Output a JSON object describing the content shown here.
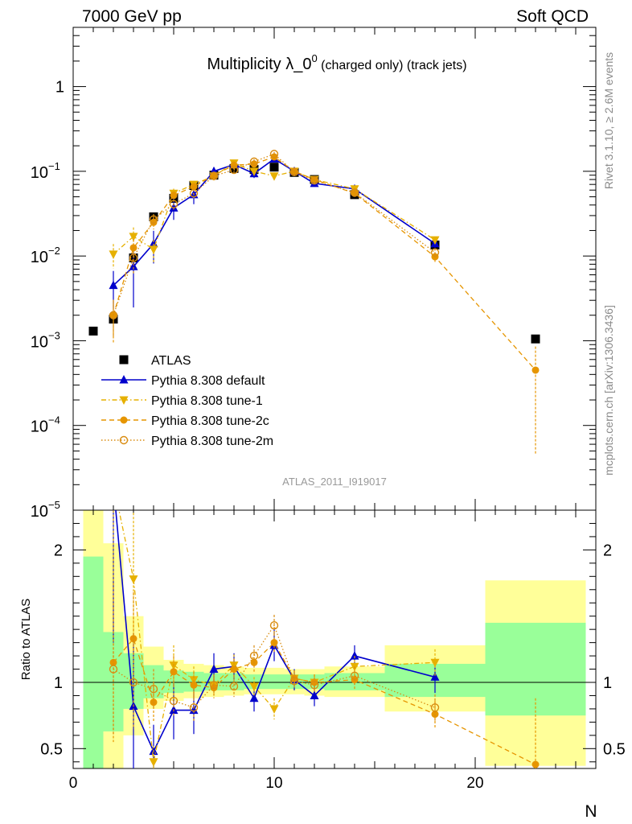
{
  "header": {
    "left": "7000 GeV pp",
    "right": "Soft QCD"
  },
  "side_labels": {
    "rivet": "Rivet 3.1.10, ≥ 2.6M events",
    "mcplots": "mcplots.cern.ch [arXiv:1306.3436]"
  },
  "chart_data": {
    "type": "scatter",
    "title_main": "Multiplicity λ_0",
    "title_sup": "0",
    "title_suffix": " (charged only) (track jets)",
    "watermark": "ATLAS_2011_I919017",
    "xlabel": "N",
    "ylabel_ratio": "Ratio to ATLAS",
    "xlim": [
      0,
      26
    ],
    "ylim_main": [
      1e-05,
      5
    ],
    "ylim_ratio": [
      0.35,
      2.3
    ],
    "y_scale_main": "log",
    "legend_position": "bottom-left",
    "x_ticks": [
      "0",
      "10",
      "20"
    ],
    "main_y_ticks": [
      {
        "v": 1,
        "label": "1",
        "sup": ""
      },
      {
        "v": 0.1,
        "label": "10",
        "sup": "−1"
      },
      {
        "v": 0.01,
        "label": "10",
        "sup": "−2"
      },
      {
        "v": 0.001,
        "label": "10",
        "sup": "−3"
      },
      {
        "v": 0.0001,
        "label": "10",
        "sup": "−4"
      },
      {
        "v": 1e-05,
        "label": "10",
        "sup": "−5"
      }
    ],
    "ratio_y_ticks": [
      "0.5",
      "1",
      "2"
    ],
    "ratio_bands": [
      {
        "x0": 0.5,
        "x1": 1.5,
        "g": [
          0.35,
          1.95
        ],
        "y": [
          0.35,
          2.3
        ]
      },
      {
        "x0": 1.5,
        "x1": 2.5,
        "g": [
          0.63,
          1.38
        ],
        "y": [
          0.35,
          2.05
        ]
      },
      {
        "x0": 2.5,
        "x1": 3.5,
        "g": [
          0.8,
          1.22
        ],
        "y": [
          0.6,
          1.5
        ]
      },
      {
        "x0": 3.5,
        "x1": 4.5,
        "g": [
          0.88,
          1.13
        ],
        "y": [
          0.8,
          1.27
        ]
      },
      {
        "x0": 4.5,
        "x1": 5.5,
        "g": [
          0.92,
          1.09
        ],
        "y": [
          0.86,
          1.17
        ]
      },
      {
        "x0": 5.5,
        "x1": 6.5,
        "g": [
          0.93,
          1.08
        ],
        "y": [
          0.88,
          1.14
        ]
      },
      {
        "x0": 6.5,
        "x1": 7.5,
        "g": [
          0.94,
          1.07
        ],
        "y": [
          0.89,
          1.13
        ]
      },
      {
        "x0": 7.5,
        "x1": 8.5,
        "g": [
          0.94,
          1.07
        ],
        "y": [
          0.9,
          1.12
        ]
      },
      {
        "x0": 8.5,
        "x1": 9.5,
        "g": [
          0.95,
          1.06
        ],
        "y": [
          0.91,
          1.11
        ]
      },
      {
        "x0": 9.5,
        "x1": 10.5,
        "g": [
          0.95,
          1.06
        ],
        "y": [
          0.91,
          1.11
        ]
      },
      {
        "x0": 10.5,
        "x1": 11.5,
        "g": [
          0.95,
          1.06
        ],
        "y": [
          0.91,
          1.1
        ]
      },
      {
        "x0": 11.5,
        "x1": 12.5,
        "g": [
          0.95,
          1.06
        ],
        "y": [
          0.9,
          1.1
        ]
      },
      {
        "x0": 12.5,
        "x1": 15.5,
        "g": [
          0.94,
          1.07
        ],
        "y": [
          0.89,
          1.12
        ]
      },
      {
        "x0": 15.5,
        "x1": 20.5,
        "g": [
          0.89,
          1.14
        ],
        "y": [
          0.78,
          1.28
        ]
      },
      {
        "x0": 20.5,
        "x1": 25.5,
        "g": [
          0.75,
          1.45
        ],
        "y": [
          0.37,
          1.77
        ]
      }
    ],
    "series": [
      {
        "name": "ATLAS",
        "color": "#000000",
        "style": "data",
        "x": [
          1,
          2,
          3,
          4,
          5,
          6,
          7,
          8,
          9,
          10,
          11,
          12,
          14,
          18,
          23
        ],
        "y": [
          0.0013,
          0.0018,
          0.0095,
          0.029,
          0.048,
          0.068,
          0.09,
          0.108,
          0.105,
          0.112,
          0.097,
          0.08,
          0.053,
          0.0135,
          0.00105
        ]
      },
      {
        "name": "Pythia 8.308 default",
        "color": "#0000cc",
        "style": "solid",
        "marker": "triangle-up",
        "x": [
          2,
          3,
          4,
          5,
          6,
          7,
          8,
          9,
          10,
          11,
          12,
          14,
          18
        ],
        "y": [
          0.0045,
          0.0075,
          0.014,
          0.037,
          0.053,
          0.1,
          0.12,
          0.094,
          0.14,
          0.1,
          0.072,
          0.062,
          0.014
        ],
        "ratio": [
          2.5,
          0.82,
          0.48,
          0.79,
          0.79,
          1.1,
          1.12,
          0.88,
          1.28,
          1.02,
          0.9,
          1.2,
          1.04
        ],
        "ratio_err": [
          1.2,
          0.55,
          0.2,
          0.22,
          0.18,
          0.12,
          0.1,
          0.1,
          0.12,
          0.08,
          0.08,
          0.08,
          0.12
        ]
      },
      {
        "name": "Pythia 8.308 tune-1",
        "color": "#e6b000",
        "style": "dashdot",
        "marker": "triangle-down",
        "x": [
          2,
          3,
          4,
          5,
          6,
          7,
          8,
          9,
          10,
          11,
          12,
          14,
          18
        ],
        "y": [
          0.0105,
          0.017,
          0.012,
          0.055,
          0.07,
          0.088,
          0.125,
          0.1,
          0.088,
          0.1,
          0.08,
          0.062,
          0.0155
        ],
        "ratio": [
          2.5,
          1.78,
          0.4,
          1.13,
          1.02,
          0.98,
          1.13,
          0.97,
          0.8,
          1.03,
          1.0,
          1.12,
          1.15
        ],
        "ratio_err": [
          0.8,
          0.5,
          0.12,
          0.15,
          0.1,
          0.08,
          0.08,
          0.07,
          0.08,
          0.06,
          0.06,
          0.08,
          0.1
        ]
      },
      {
        "name": "Pythia 8.308 tune-2c",
        "color": "#e69500",
        "style": "dashed",
        "marker": "circle",
        "x": [
          2,
          3,
          4,
          5,
          6,
          7,
          8,
          9,
          10,
          11,
          12,
          14,
          18,
          23
        ],
        "y": [
          0.002,
          0.0125,
          0.025,
          0.052,
          0.066,
          0.09,
          0.118,
          0.122,
          0.148,
          0.1,
          0.08,
          0.055,
          0.0098,
          0.00045
        ],
        "ratio": [
          1.15,
          1.33,
          0.85,
          1.08,
          0.98,
          0.96,
          1.1,
          1.15,
          1.3,
          1.03,
          1.0,
          1.02,
          0.76,
          0.38
        ],
        "ratio_err": [
          0.6,
          0.35,
          0.15,
          0.12,
          0.1,
          0.08,
          0.08,
          0.07,
          0.07,
          0.06,
          0.06,
          0.07,
          0.1,
          0.5
        ]
      },
      {
        "name": "Pythia 8.308 tune-2m",
        "color": "#d98c10",
        "style": "dotted",
        "marker": "circle-open",
        "x": [
          2,
          3,
          4,
          5,
          6,
          7,
          8,
          9,
          10,
          11,
          12,
          14,
          18
        ],
        "y": [
          0.002,
          0.0095,
          0.027,
          0.041,
          0.055,
          0.088,
          0.104,
          0.13,
          0.16,
          0.098,
          0.078,
          0.056,
          0.011
        ],
        "ratio": [
          1.1,
          1.0,
          0.95,
          0.86,
          0.81,
          0.98,
          0.97,
          1.2,
          1.43,
          1.01,
          0.98,
          1.05,
          0.81
        ],
        "ratio_err": [
          0.5,
          0.35,
          0.15,
          0.12,
          0.1,
          0.08,
          0.08,
          0.08,
          0.08,
          0.06,
          0.06,
          0.07,
          0.1
        ]
      }
    ]
  }
}
